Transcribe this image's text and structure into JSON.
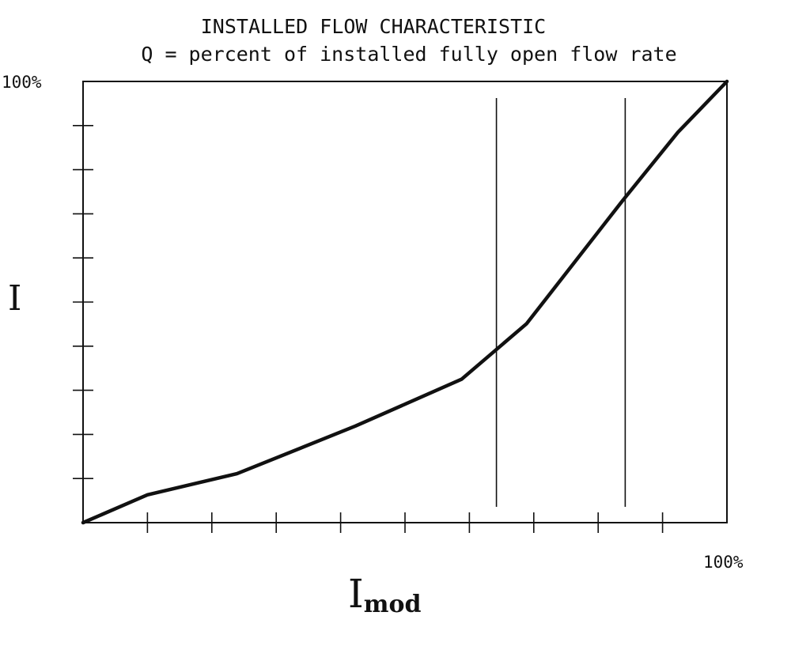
{
  "chart_data": {
    "type": "line",
    "title": "INSTALLED FLOW CHARACTERISTIC",
    "subtitle": "Q = percent of installed fully open flow rate",
    "xlabel": "I",
    "xlabel_subscript": "mod",
    "ylabel": "I",
    "x_max_label": "100%",
    "y_max_label": "100%",
    "xlim": [
      0,
      100
    ],
    "ylim": [
      0,
      100
    ],
    "x_tick_values": [
      10,
      20,
      30,
      40,
      50,
      60,
      70,
      80,
      90
    ],
    "y_tick_values": [
      10,
      20,
      30,
      40,
      50,
      60,
      70,
      80,
      90
    ],
    "grid": false,
    "series": [
      {
        "x": [
          0,
          10,
          23.9,
          42.3,
          58.8,
          68.9,
          83.8,
          92.4,
          100
        ],
        "y": [
          0,
          6.3,
          11.1,
          21.9,
          32.5,
          45.1,
          73.0,
          88.5,
          100
        ]
      }
    ],
    "vertical_markers": [
      64.2,
      84.2
    ]
  }
}
